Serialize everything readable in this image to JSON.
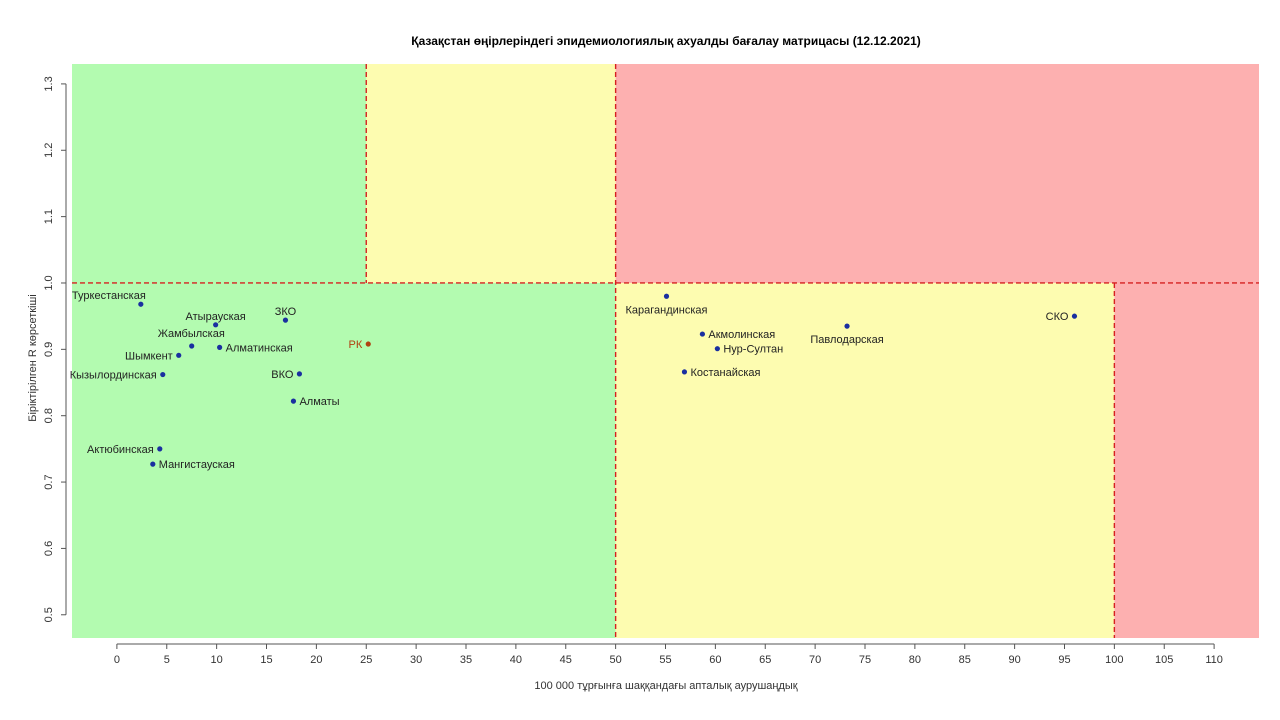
{
  "chart_data": {
    "type": "scatter",
    "title": "Қазақстан өңірлеріндегі эпидемиологиялық ахуалды бағалау матрицасы  (12.12.2021)",
    "xlabel": "100 000 тұрғынға шаққандағы апталық аурушаңдық",
    "ylabel": "Біріктірілген R көрсеткіші",
    "xlim": [
      -4.5,
      114.5
    ],
    "ylim": [
      0.465,
      1.33
    ],
    "x_ticks": [
      0,
      5,
      10,
      15,
      20,
      25,
      30,
      35,
      40,
      45,
      50,
      55,
      60,
      65,
      70,
      75,
      80,
      85,
      90,
      95,
      100,
      105,
      110
    ],
    "y_ticks": [
      0.5,
      0.6,
      0.7,
      0.8,
      0.9,
      1.0,
      1.1,
      1.2,
      1.3
    ],
    "y_tick_labels": [
      "0.5",
      "0.6",
      "0.7",
      "0.8",
      "0.9",
      "1.0",
      "1.1",
      "1.2",
      "1.3"
    ],
    "zones": [
      {
        "x": [
          -4.5,
          50
        ],
        "y": [
          0.465,
          1.33
        ],
        "color": "#b3fbb0"
      },
      {
        "x": [
          25,
          50
        ],
        "y": [
          1.0,
          1.33
        ],
        "color": "#fdfcb0"
      },
      {
        "x": [
          50,
          114.5
        ],
        "y": [
          1.0,
          1.33
        ],
        "color": "#fdb0b0"
      },
      {
        "x": [
          50,
          100
        ],
        "y": [
          0.465,
          1.0
        ],
        "color": "#fdfcb0"
      },
      {
        "x": [
          100,
          114.5
        ],
        "y": [
          0.465,
          1.0
        ],
        "color": "#fdb0b0"
      }
    ],
    "thresholds": [
      {
        "axis": "x",
        "value": 25,
        "from": 1.0,
        "to": 1.33
      },
      {
        "axis": "x",
        "value": 50,
        "from": 0.465,
        "to": 1.33
      },
      {
        "axis": "x",
        "value": 100,
        "from": 0.465,
        "to": 1.0
      },
      {
        "axis": "y",
        "value": 1.0,
        "from": -4.5,
        "to": 114.5
      }
    ],
    "threshold_color": "#d62020",
    "point_color": "#1a2fa0",
    "label_color": "#222222",
    "highlight_color": "#b04010",
    "points": [
      {
        "name": "Туркестанская",
        "x": 2.4,
        "y": 0.968,
        "anchor": "end",
        "dy": -9,
        "dx": 5
      },
      {
        "name": "Атырауская",
        "x": 9.9,
        "y": 0.937,
        "anchor": "middle",
        "dy": -9,
        "dx": 0
      },
      {
        "name": "ЗКО",
        "x": 16.9,
        "y": 0.944,
        "anchor": "middle",
        "dy": -9,
        "dx": 0
      },
      {
        "name": "Жамбылская",
        "x": 7.5,
        "y": 0.905,
        "anchor": "start",
        "dy": -13,
        "dx": -34
      },
      {
        "name": "Алматинская",
        "x": 10.3,
        "y": 0.903,
        "anchor": "start",
        "dy": 0,
        "dx": 6
      },
      {
        "name": "Шымкент",
        "x": 6.2,
        "y": 0.891,
        "anchor": "end",
        "dy": 0,
        "dx": -6
      },
      {
        "name": "РК",
        "x": 25.2,
        "y": 0.908,
        "anchor": "end",
        "dy": 0,
        "dx": -6,
        "highlight": true
      },
      {
        "name": "Кызылординская",
        "x": 4.6,
        "y": 0.862,
        "anchor": "end",
        "dy": 0,
        "dx": -6
      },
      {
        "name": "ВКО",
        "x": 18.3,
        "y": 0.863,
        "anchor": "end",
        "dy": 0,
        "dx": -6
      },
      {
        "name": "Алматы",
        "x": 17.7,
        "y": 0.822,
        "anchor": "start",
        "dy": 0,
        "dx": 6
      },
      {
        "name": "Актюбинская",
        "x": 4.3,
        "y": 0.75,
        "anchor": "end",
        "dy": 0,
        "dx": -6
      },
      {
        "name": "Мангистауская",
        "x": 3.6,
        "y": 0.727,
        "anchor": "start",
        "dy": 0,
        "dx": 6
      },
      {
        "name": "Карагандинская",
        "x": 55.1,
        "y": 0.98,
        "anchor": "middle",
        "dy": 13,
        "dx": 0
      },
      {
        "name": "Акмолинская",
        "x": 58.7,
        "y": 0.923,
        "anchor": "start",
        "dy": 0,
        "dx": 6
      },
      {
        "name": "Нур-Султан",
        "x": 60.2,
        "y": 0.901,
        "anchor": "start",
        "dy": 0,
        "dx": 6
      },
      {
        "name": "Костанайская",
        "x": 56.9,
        "y": 0.866,
        "anchor": "start",
        "dy": 0,
        "dx": 6
      },
      {
        "name": "Павлодарская",
        "x": 73.2,
        "y": 0.935,
        "anchor": "middle",
        "dy": 13,
        "dx": 0
      },
      {
        "name": "СКО",
        "x": 96.0,
        "y": 0.95,
        "anchor": "end",
        "dy": 0,
        "dx": -6
      }
    ]
  }
}
